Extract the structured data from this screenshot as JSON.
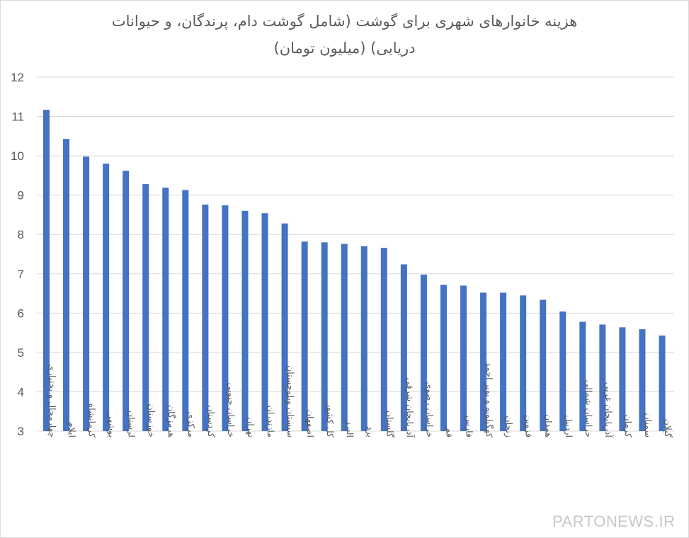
{
  "chart_data": {
    "type": "bar",
    "title_line1": "هزینه خانوارهای شهری برای گوشت (شامل گوشت دام، پرندگان، و حیوانات",
    "title_line2": "دریایی) (میلیون تومان)",
    "xlabel": "",
    "ylabel": "",
    "ylim": [
      3,
      12
    ],
    "yticks": [
      3,
      4,
      5,
      6,
      7,
      8,
      9,
      10,
      11,
      12
    ],
    "grid": true,
    "bar_color": "#4472c4",
    "grid_color": "#d9d9d9",
    "categories": [
      "چهارمحال و بختیاری",
      "ایلام",
      "کرمانشاه",
      "بوشهر",
      "لرستان",
      "خوزستان",
      "هرمزگان",
      "مرکزی",
      "کردستان",
      "خراسان جنوبی",
      "تهران",
      "مازندران",
      "سیستان وبلوچستان",
      "اصفهان",
      "کل کشور",
      "البرز",
      "یزد",
      "گلستان",
      "آذربایجان شرقی",
      "خراسان رضوی",
      "قم",
      "فارس",
      "کهگیلویه و بویر احمد",
      "زنجان",
      "قزوین",
      "همدان",
      "اردبیل",
      "خراسان شمالی",
      "آذربایجان غربی",
      "کرمان",
      "سمنان",
      "گیلان"
    ],
    "values": [
      11.17,
      10.43,
      9.98,
      9.8,
      9.62,
      9.28,
      9.19,
      9.13,
      8.76,
      8.74,
      8.6,
      8.54,
      8.28,
      7.82,
      7.8,
      7.76,
      7.7,
      7.66,
      7.24,
      6.98,
      6.72,
      6.7,
      6.52,
      6.52,
      6.45,
      6.34,
      6.04,
      5.78,
      5.71,
      5.64,
      5.59,
      5.43
    ]
  },
  "watermark": "PARTONEWS.IR"
}
